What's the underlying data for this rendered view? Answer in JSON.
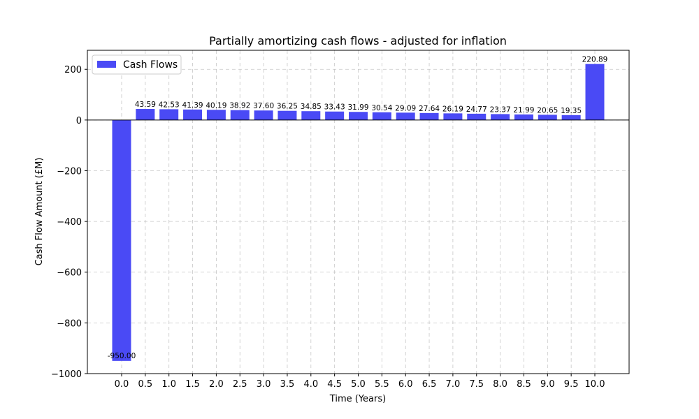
{
  "chart_data": {
    "type": "bar",
    "title": "Partially amortizing cash flows - adjusted for inflation",
    "xlabel": "Time (Years)",
    "ylabel": "Cash Flow Amount (£M)",
    "categories": [
      "0.0",
      "0.5",
      "1.0",
      "1.5",
      "2.0",
      "2.5",
      "3.0",
      "3.5",
      "4.0",
      "4.5",
      "5.0",
      "5.5",
      "6.0",
      "6.5",
      "7.0",
      "7.5",
      "8.0",
      "8.5",
      "9.0",
      "9.5",
      "10.0"
    ],
    "series": [
      {
        "name": "Cash Flows",
        "color": "#4a4af5",
        "values": [
          -950.0,
          43.59,
          42.53,
          41.39,
          40.19,
          38.92,
          37.6,
          36.25,
          34.85,
          33.43,
          31.99,
          30.54,
          29.09,
          27.64,
          26.19,
          24.77,
          23.37,
          21.99,
          20.65,
          19.35,
          220.89
        ],
        "labels": [
          "-950.00",
          "43.59",
          "42.53",
          "41.39",
          "40.19",
          "38.92",
          "37.60",
          "36.25",
          "34.85",
          "33.43",
          "31.99",
          "30.54",
          "29.09",
          "27.64",
          "26.19",
          "24.77",
          "23.37",
          "21.99",
          "20.65",
          "19.35",
          "220.89"
        ]
      }
    ],
    "ylim": [
      -1000,
      275
    ],
    "yticks": [
      -1000,
      -800,
      -600,
      -400,
      -200,
      0,
      200
    ],
    "ytick_labels": [
      "−1000",
      "−800",
      "−600",
      "−400",
      "−200",
      "0",
      "200"
    ],
    "grid": true,
    "legend_position": "top-left",
    "zero_line": true
  }
}
